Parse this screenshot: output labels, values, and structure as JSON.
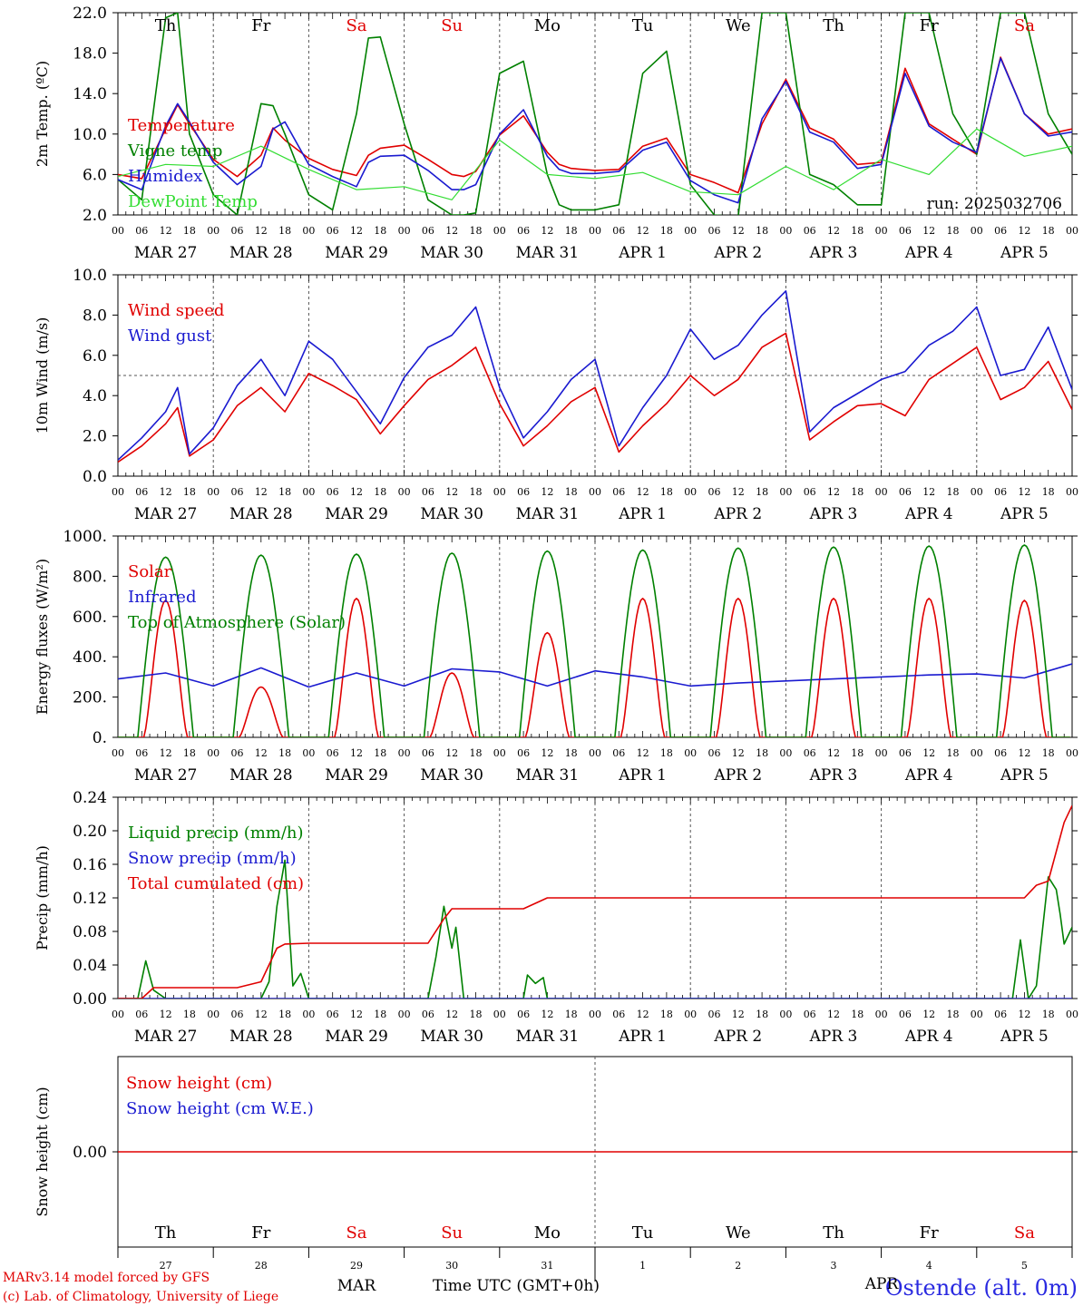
{
  "colors": {
    "red": "#e00000",
    "green": "#008000",
    "blue": "#1a1ad0",
    "lightgreen": "#33dd33",
    "dash": "#555555"
  },
  "x_hour_labels": [
    "00",
    "06",
    "12",
    "18"
  ],
  "date_labels": [
    "MAR 27",
    "MAR 28",
    "MAR 29",
    "MAR 30",
    "MAR 31",
    "APR  1",
    "APR  2",
    "APR  3",
    "APR  4",
    "APR  5"
  ],
  "day_names": [
    {
      "label": "Th",
      "weekend": false
    },
    {
      "label": "Fr",
      "weekend": false
    },
    {
      "label": "Sa",
      "weekend": true
    },
    {
      "label": "Su",
      "weekend": true
    },
    {
      "label": "Mo",
      "weekend": false
    },
    {
      "label": "Tu",
      "weekend": false
    },
    {
      "label": "We",
      "weekend": false
    },
    {
      "label": "Th",
      "weekend": false
    },
    {
      "label": "Fr",
      "weekend": false
    },
    {
      "label": "Sa",
      "weekend": true
    }
  ],
  "chart_data": [
    {
      "type": "line",
      "ylabel": "2m Temp. (ºC)",
      "ylim": [
        2,
        22
      ],
      "yticks": [
        "2.0",
        "6.0",
        "10.0",
        "14.0",
        "18.0",
        "22.0"
      ],
      "ytick_values": [
        2,
        6,
        10,
        14,
        18,
        22
      ],
      "annotation": "run: 2025032706",
      "x_unit": "hours since MAR 27 00 UTC",
      "series": [
        {
          "name": "Temperature",
          "color": "red",
          "x": [
            0,
            6,
            12,
            15,
            18,
            24,
            30,
            36,
            39,
            42,
            48,
            54,
            60,
            63,
            66,
            72,
            78,
            84,
            87,
            90,
            96,
            102,
            108,
            111,
            114,
            120,
            126,
            132,
            138,
            144,
            150,
            156,
            162,
            168,
            174,
            180,
            186,
            192,
            198,
            204,
            210,
            216,
            222,
            228,
            234,
            240
          ],
          "y": [
            6.0,
            5.6,
            10.5,
            12.9,
            11.0,
            7.5,
            5.8,
            7.9,
            10.6,
            9.4,
            7.6,
            6.5,
            5.9,
            7.9,
            8.6,
            8.9,
            7.5,
            6.0,
            5.8,
            6.3,
            9.9,
            11.8,
            8.2,
            7.0,
            6.6,
            6.4,
            6.5,
            8.8,
            9.6,
            6.0,
            5.2,
            4.2,
            11.0,
            15.4,
            10.6,
            9.5,
            7.0,
            7.2,
            16.5,
            11.0,
            9.5,
            8.0,
            17.6,
            12.0,
            10.0,
            10.5
          ]
        },
        {
          "name": "Vigne temp",
          "color": "green",
          "x": [
            0,
            6,
            12,
            15,
            18,
            24,
            30,
            36,
            39,
            42,
            48,
            54,
            60,
            63,
            66,
            72,
            78,
            84,
            87,
            90,
            96,
            102,
            108,
            111,
            114,
            120,
            126,
            132,
            138,
            144,
            150,
            156,
            162,
            168,
            174,
            180,
            186,
            192,
            198,
            204,
            210,
            216,
            222,
            228,
            234,
            240
          ],
          "y": [
            5.5,
            3.5,
            21.5,
            22.0,
            10.0,
            4.0,
            2.0,
            13.0,
            12.8,
            10.0,
            4.0,
            2.5,
            12.0,
            19.5,
            19.6,
            11.0,
            3.5,
            2.0,
            2.0,
            2.2,
            16.0,
            17.2,
            6.0,
            3.0,
            2.5,
            2.5,
            3.0,
            16.0,
            18.2,
            5.0,
            2.0,
            1.8,
            22.0,
            22.0,
            6.0,
            5.0,
            3.0,
            3.0,
            22.0,
            22.0,
            12.0,
            8.0,
            22.0,
            22.0,
            12.0,
            8.0
          ]
        },
        {
          "name": "Humidex",
          "color": "blue",
          "x": [
            0,
            6,
            12,
            15,
            18,
            24,
            30,
            36,
            39,
            42,
            48,
            54,
            60,
            63,
            66,
            72,
            78,
            84,
            87,
            90,
            96,
            102,
            108,
            111,
            114,
            120,
            126,
            132,
            138,
            144,
            150,
            156,
            162,
            168,
            174,
            180,
            186,
            192,
            198,
            204,
            210,
            216,
            222,
            228,
            234,
            240
          ],
          "y": [
            5.5,
            4.5,
            10.8,
            13.0,
            11.2,
            7.2,
            5.0,
            6.8,
            10.5,
            11.2,
            7.0,
            5.8,
            4.8,
            7.2,
            7.8,
            7.9,
            6.4,
            4.5,
            4.5,
            5.0,
            10.0,
            12.4,
            7.8,
            6.5,
            6.1,
            6.1,
            6.3,
            8.4,
            9.2,
            5.4,
            4.0,
            3.2,
            11.5,
            15.2,
            10.2,
            9.2,
            6.6,
            7.0,
            16.0,
            10.8,
            9.2,
            8.2,
            17.5,
            12.0,
            9.8,
            10.2
          ]
        },
        {
          "name": "DewPoint Temp",
          "color": "lightgreen",
          "x": [
            0,
            12,
            24,
            36,
            48,
            60,
            72,
            84,
            96,
            108,
            120,
            132,
            144,
            156,
            168,
            180,
            192,
            204,
            216,
            228,
            240
          ],
          "y": [
            5.8,
            7.0,
            6.8,
            8.8,
            6.5,
            4.5,
            4.8,
            3.5,
            9.4,
            6.0,
            5.6,
            6.2,
            4.3,
            4.0,
            6.8,
            4.5,
            7.5,
            6.0,
            10.5,
            7.8,
            8.8
          ]
        }
      ]
    },
    {
      "type": "line",
      "ylabel": "10m Wind (m/s)",
      "ylim": [
        0,
        10
      ],
      "yticks": [
        "0.0",
        "2.0",
        "4.0",
        "6.0",
        "8.0",
        "10.0"
      ],
      "ytick_values": [
        0,
        2,
        4,
        6,
        8,
        10
      ],
      "reference_line": 5.0,
      "series": [
        {
          "name": "Wind speed",
          "color": "red",
          "x": [
            0,
            6,
            12,
            15,
            18,
            24,
            30,
            36,
            42,
            48,
            54,
            60,
            66,
            72,
            78,
            84,
            90,
            96,
            102,
            108,
            114,
            120,
            126,
            132,
            138,
            144,
            150,
            156,
            162,
            168,
            174,
            180,
            186,
            192,
            198,
            204,
            210,
            216,
            222,
            228,
            234,
            240
          ],
          "y": [
            0.7,
            1.5,
            2.6,
            3.4,
            1.0,
            1.8,
            3.5,
            4.4,
            3.2,
            5.1,
            4.5,
            3.8,
            2.1,
            3.5,
            4.8,
            5.5,
            6.4,
            3.6,
            1.5,
            2.5,
            3.7,
            4.4,
            1.2,
            2.5,
            3.6,
            5.0,
            4.0,
            4.8,
            6.4,
            7.1,
            1.8,
            2.7,
            3.5,
            3.6,
            3.0,
            4.8,
            5.6,
            6.4,
            3.8,
            4.4,
            5.7,
            3.3
          ]
        },
        {
          "name": "Wind gust",
          "color": "blue",
          "x": [
            0,
            6,
            12,
            15,
            18,
            24,
            30,
            36,
            42,
            48,
            54,
            60,
            66,
            72,
            78,
            84,
            90,
            96,
            102,
            108,
            114,
            120,
            126,
            132,
            138,
            144,
            150,
            156,
            162,
            168,
            174,
            180,
            186,
            192,
            198,
            204,
            210,
            216,
            222,
            228,
            234,
            240
          ],
          "y": [
            0.8,
            1.9,
            3.2,
            4.4,
            1.1,
            2.4,
            4.5,
            5.8,
            4.0,
            6.7,
            5.8,
            4.2,
            2.6,
            4.9,
            6.4,
            7.0,
            8.4,
            4.4,
            1.9,
            3.2,
            4.8,
            5.8,
            1.5,
            3.4,
            5.0,
            7.3,
            5.8,
            6.5,
            8.0,
            9.2,
            2.2,
            3.4,
            4.1,
            4.8,
            5.2,
            6.5,
            7.2,
            8.4,
            5.0,
            5.3,
            7.4,
            4.3
          ]
        }
      ]
    },
    {
      "type": "line",
      "ylabel": "Energy fluxes (W/m²)",
      "ylim": [
        0,
        1000
      ],
      "yticks": [
        "0.",
        "200.",
        "400.",
        "600.",
        "800.",
        "1000."
      ],
      "ytick_values": [
        0,
        200,
        400,
        600,
        800,
        1000
      ],
      "series": [
        {
          "name": "Solar",
          "color": "red",
          "daily_peaks": [
            680,
            250,
            690,
            320,
            520,
            690,
            690,
            690,
            690,
            680
          ]
        },
        {
          "name": "Infrared",
          "color": "blue",
          "x": [
            0,
            12,
            24,
            36,
            48,
            60,
            72,
            84,
            96,
            108,
            120,
            132,
            144,
            156,
            168,
            180,
            192,
            204,
            216,
            228,
            240
          ],
          "y": [
            290,
            320,
            255,
            345,
            250,
            320,
            255,
            340,
            325,
            255,
            330,
            300,
            255,
            270,
            280,
            290,
            300,
            310,
            315,
            295,
            365
          ]
        },
        {
          "name": "Top of Atmosphere (Solar)",
          "color": "green",
          "daily_peaks": [
            895,
            905,
            910,
            915,
            925,
            930,
            940,
            945,
            950,
            955
          ]
        }
      ]
    },
    {
      "type": "line",
      "ylabel": "Precip (mm/h)",
      "ylim": [
        0,
        0.24
      ],
      "yticks": [
        "0.00",
        "0.04",
        "0.08",
        "0.12",
        "0.16",
        "0.20",
        "0.24"
      ],
      "ytick_values": [
        0,
        0.04,
        0.08,
        0.12,
        0.16,
        0.2,
        0.24
      ],
      "series": [
        {
          "name": "Liquid precip (mm/h)",
          "color": "green",
          "x": [
            0,
            5,
            7,
            9,
            12,
            24,
            30,
            36,
            38,
            40,
            42,
            44,
            46,
            48,
            60,
            78,
            80,
            82,
            84,
            85,
            87,
            90,
            102,
            103,
            105,
            107,
            108,
            120,
            126,
            225,
            227,
            229,
            231,
            234,
            236,
            237,
            238,
            240
          ],
          "y": [
            0,
            0,
            0.045,
            0.01,
            0,
            0,
            0,
            0,
            0.02,
            0.11,
            0.165,
            0.015,
            0.03,
            0,
            0,
            0,
            0.05,
            0.11,
            0.06,
            0.085,
            0,
            0,
            0,
            0.028,
            0.018,
            0.025,
            0,
            0,
            0,
            0,
            0.07,
            0,
            0.015,
            0.145,
            0.13,
            0.1,
            0.065,
            0.085
          ]
        },
        {
          "name": "Snow precip (mm/h)",
          "color": "blue",
          "x": [
            0,
            240
          ],
          "y": [
            0,
            0
          ]
        },
        {
          "name": "Total cumulated (cm)",
          "color": "red",
          "x": [
            0,
            6,
            9,
            12,
            30,
            36,
            40,
            42,
            48,
            60,
            78,
            82,
            84,
            96,
            102,
            108,
            120,
            228,
            231,
            234,
            238,
            240
          ],
          "y": [
            0,
            0,
            0.013,
            0.013,
            0.013,
            0.02,
            0.06,
            0.065,
            0.066,
            0.066,
            0.066,
            0.095,
            0.107,
            0.107,
            0.107,
            0.12,
            0.12,
            0.12,
            0.135,
            0.14,
            0.21,
            0.23
          ]
        }
      ]
    },
    {
      "type": "line",
      "ylabel": "Snow height (cm)",
      "ylim": [
        -1,
        1
      ],
      "yticks": [
        "0.00"
      ],
      "ytick_values": [
        0
      ],
      "series": [
        {
          "name": "Snow height (cm)",
          "color": "red",
          "x": [
            0,
            240
          ],
          "y": [
            0,
            0
          ]
        },
        {
          "name": "Snow height (cm W.E.)",
          "color": "blue",
          "x": [],
          "y": []
        }
      ]
    }
  ],
  "bottom_axis": {
    "day_numbers": [
      "27",
      "28",
      "29",
      "30",
      "31",
      "1",
      "2",
      "3",
      "4",
      "5"
    ],
    "month_left": "MAR",
    "month_right": "APR",
    "title": "Time UTC (GMT+0h)"
  },
  "footer": {
    "line1": "MARv3.14 model forced by GFS",
    "line2": "(c) Lab. of Climatology, University of Liege",
    "site": "Ostende (alt. 0m)"
  }
}
